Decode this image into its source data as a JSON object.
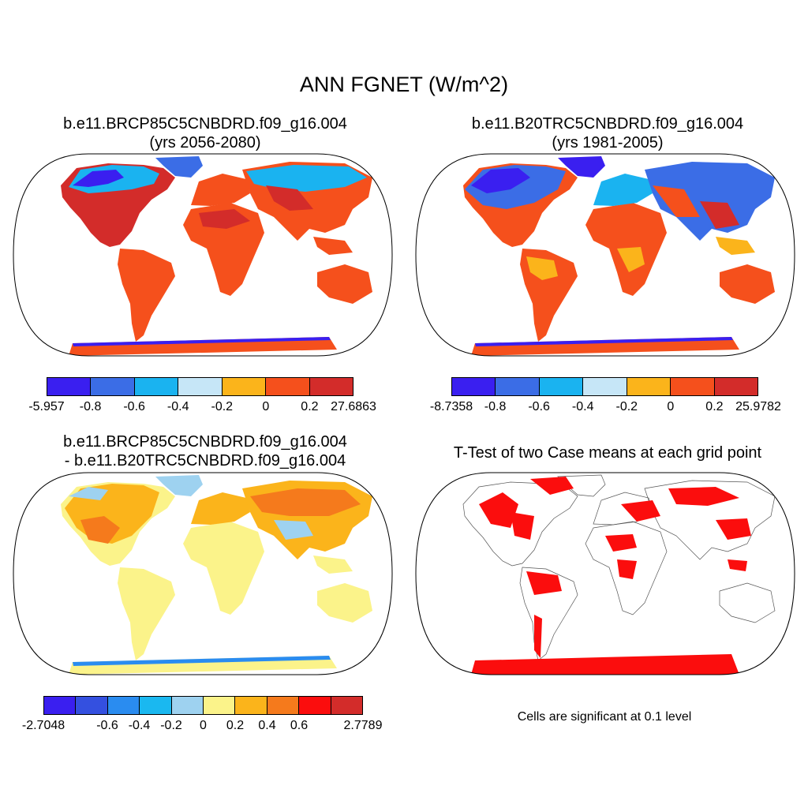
{
  "main_title": "ANN FGNET (W/m^2)",
  "panels": {
    "top_left": {
      "title_line1": "b.e11.BRCP85C5CNBDRD.f09_g16.004",
      "title_line2": "(yrs 2056-2080)",
      "colorbar": {
        "colors": [
          "#3a1ff0",
          "#3b6de6",
          "#1ab3f0",
          "#c6e6f7",
          "#fbb41b",
          "#f5501c",
          "#d32c2a"
        ],
        "labels": [
          "-5.957",
          "-0.8",
          "-0.6",
          "-0.4",
          "-0.2",
          "0",
          "0.2",
          "27.6863"
        ]
      }
    },
    "top_right": {
      "title_line1": "b.e11.B20TRC5CNBDRD.f09_g16.004",
      "title_line2": "(yrs 1981-2005)",
      "colorbar": {
        "colors": [
          "#3a1ff0",
          "#3b6de6",
          "#1ab3f0",
          "#c6e6f7",
          "#fbb41b",
          "#f5501c",
          "#d32c2a"
        ],
        "labels": [
          "-8.7358",
          "-0.8",
          "-0.6",
          "-0.4",
          "-0.2",
          "0",
          "0.2",
          "25.9782"
        ]
      }
    },
    "bottom_left": {
      "title_line1": "b.e11.BRCP85C5CNBDRD.f09_g16.004",
      "title_line2": "- b.e11.B20TRC5CNBDRD.f09_g16.004",
      "colorbar": {
        "colors": [
          "#3a1ff0",
          "#3450e0",
          "#2a8cf0",
          "#1ab8f0",
          "#9ed2f0",
          "#fbf38a",
          "#fbb41b",
          "#f57a1c",
          "#fb0d0d",
          "#d32c2a"
        ],
        "labels": [
          "-2.7048",
          "",
          "-0.6",
          "-0.4",
          "-0.2",
          "0",
          "0.2",
          "0.4",
          "0.6",
          "",
          "2.7789"
        ]
      }
    },
    "bottom_right": {
      "title_line1": "T-Test of two Case means at each grid point",
      "note": "Cells are significant at 0.1 level"
    }
  }
}
